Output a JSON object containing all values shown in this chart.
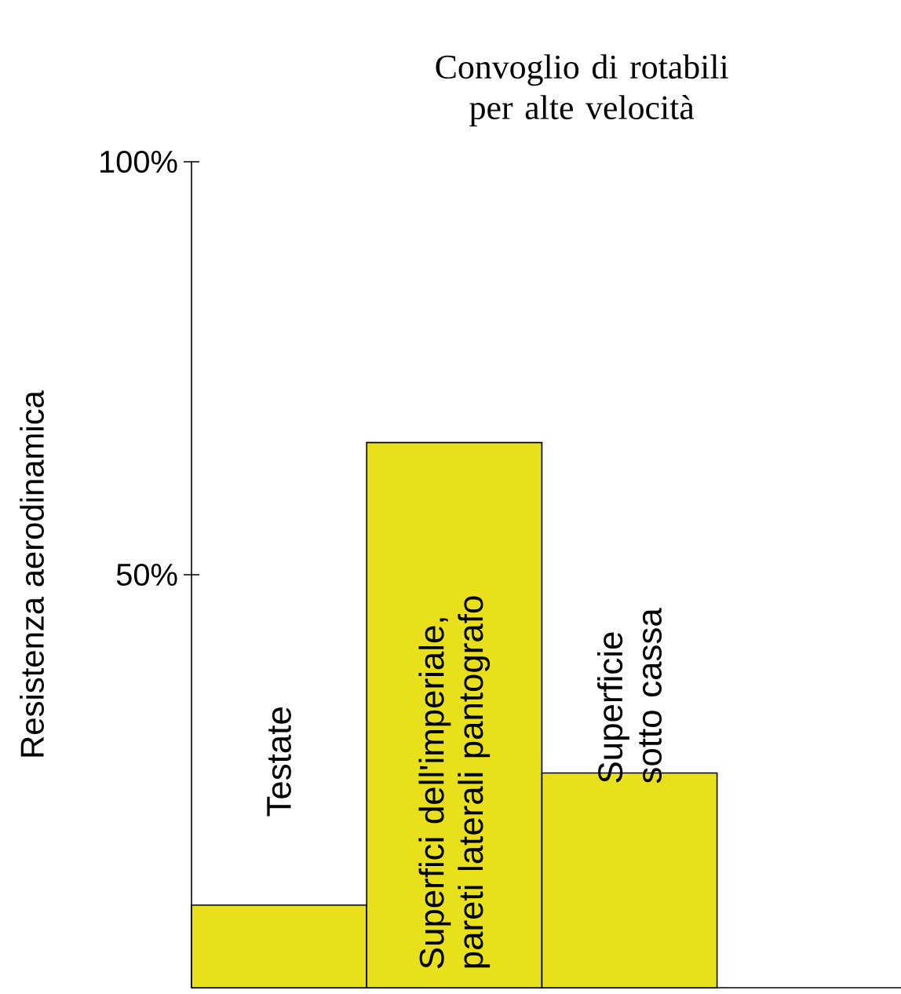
{
  "chart_data": {
    "type": "bar",
    "title": "Convoglio di rotabili per alte velocità",
    "ylabel": "Resistenza aerodinamica",
    "categories": [
      "Testate",
      "Superfici dell'imperiale, pareti laterali pantografo",
      "Superficie sotto cassa"
    ],
    "values": [
      10,
      66,
      26
    ],
    "color": "#e8e01a",
    "ylim": [
      0,
      100
    ],
    "yticks": [
      {
        "value": 50,
        "label": "50%"
      },
      {
        "value": 100,
        "label": "100%"
      }
    ]
  }
}
